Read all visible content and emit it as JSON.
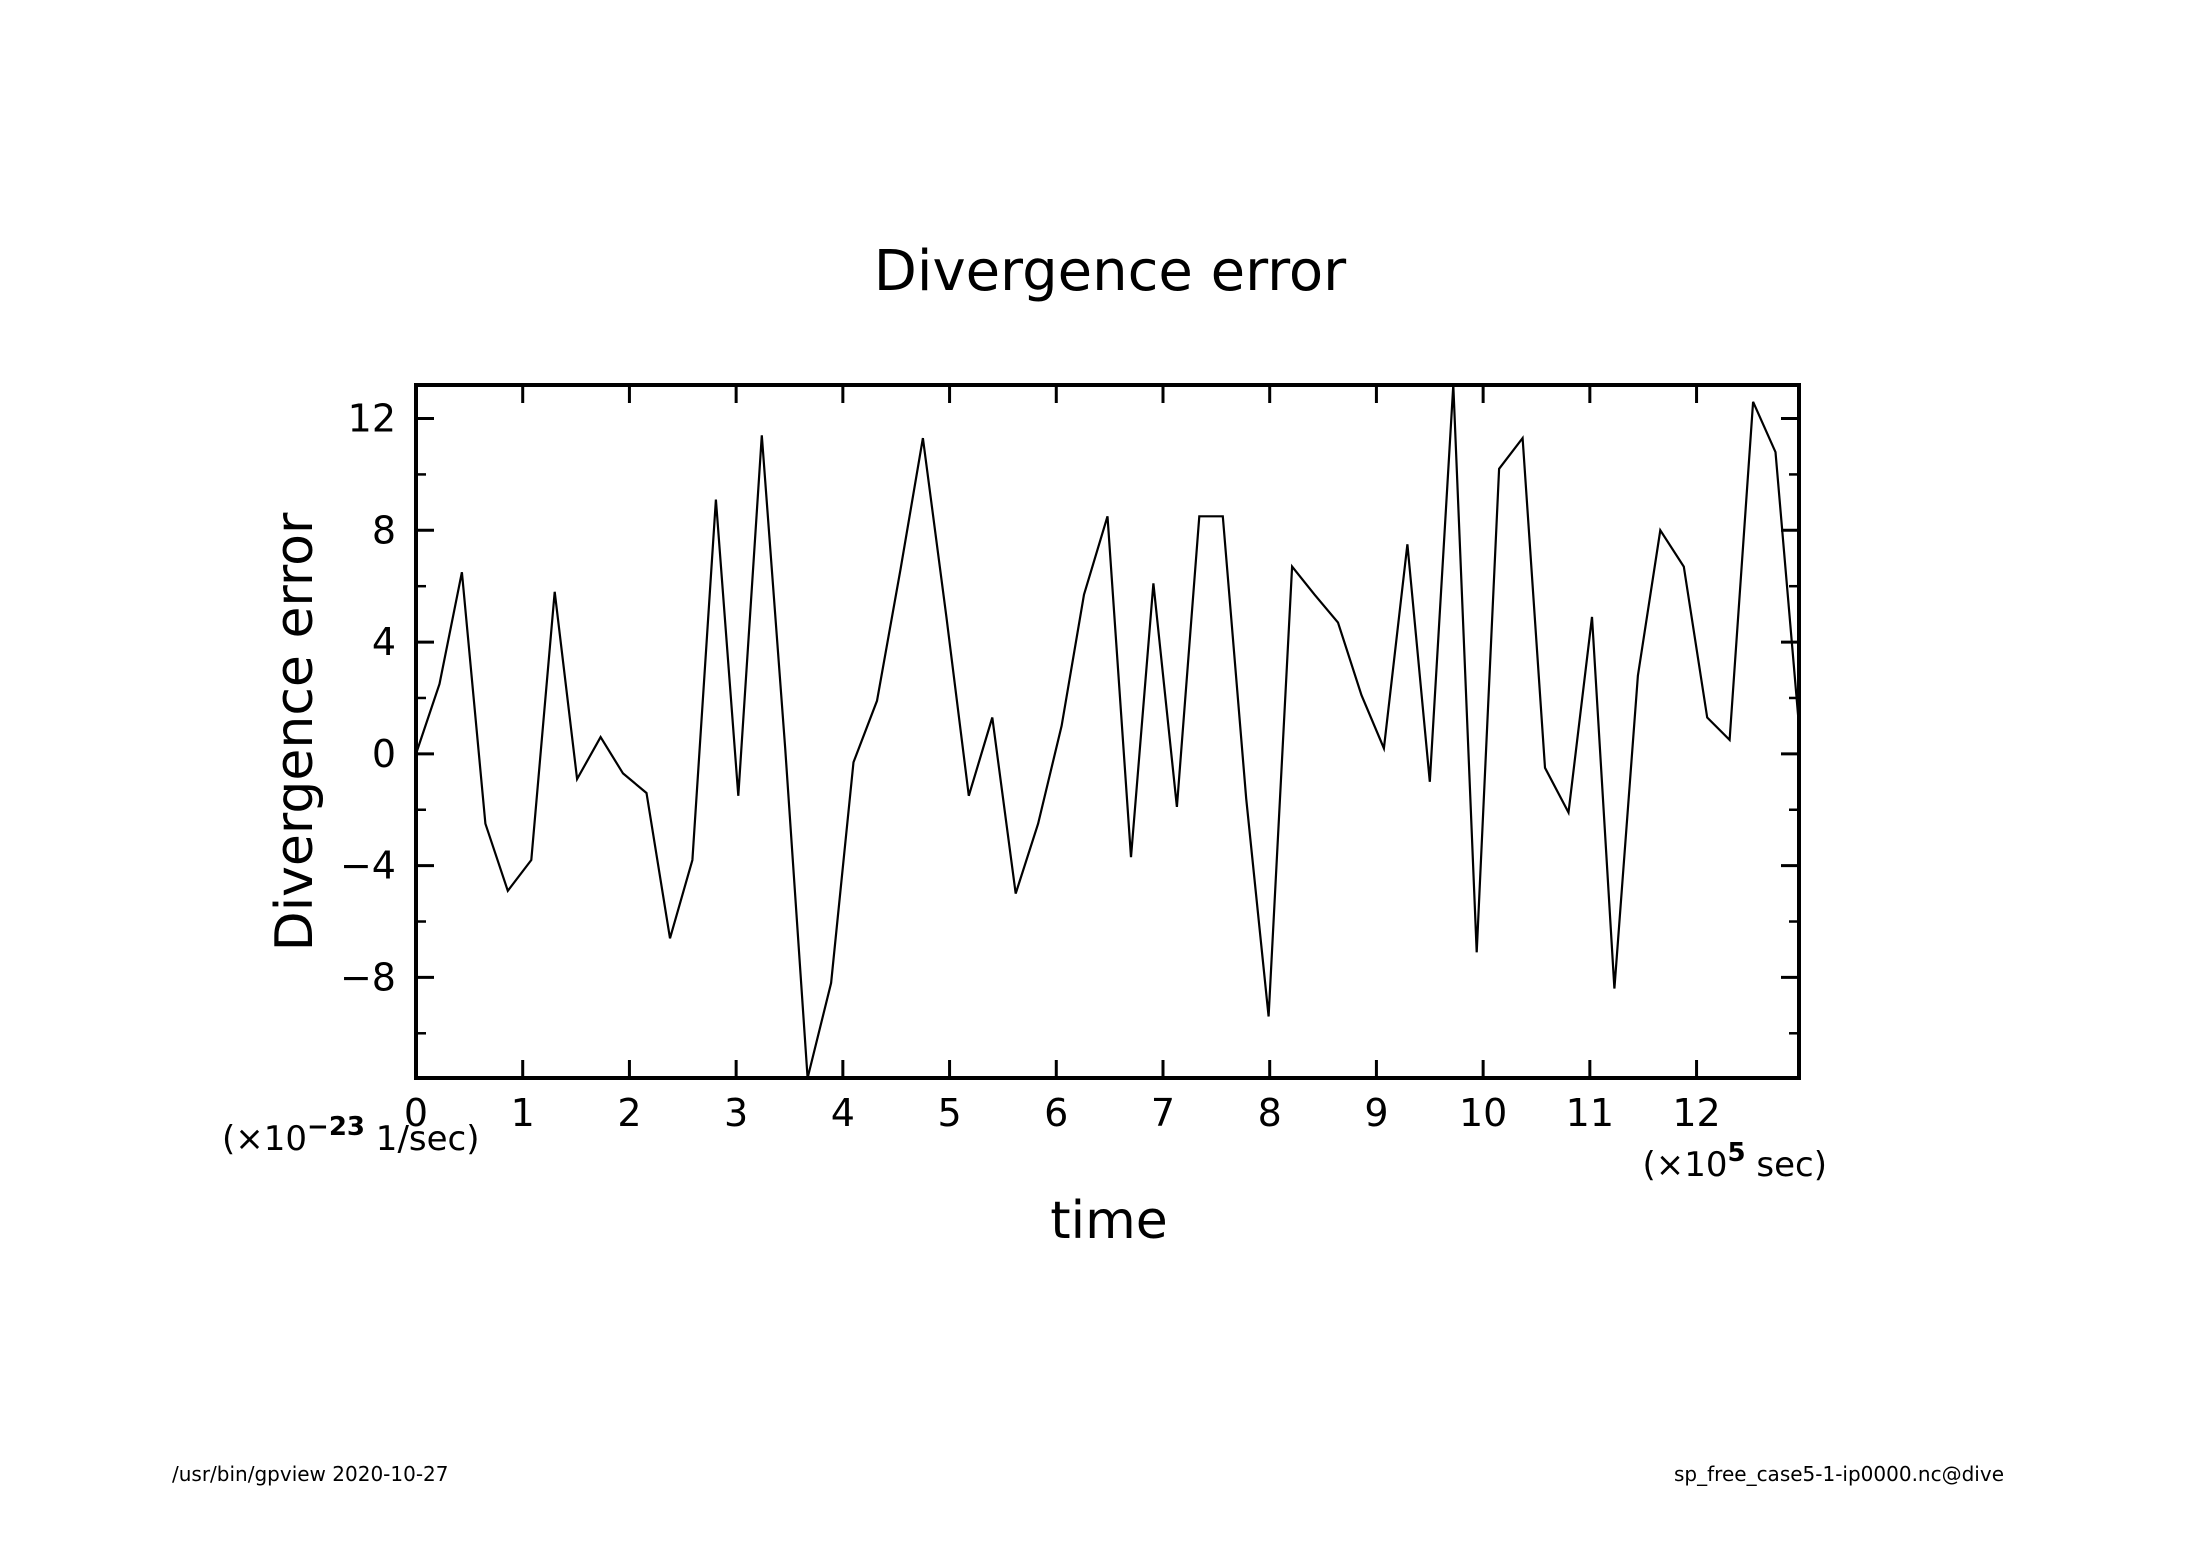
{
  "footer": {
    "left": "/usr/bin/gpview   2020-10-27",
    "right": "sp_free_case5-1-ip0000.nc@dive"
  },
  "chart_data": {
    "type": "line",
    "title": "Divergence error",
    "xlabel": "time",
    "ylabel": "Divergence error",
    "x_unit_label": "(×10^5 sec)",
    "y_unit_label": "(×10^-23 1/sec)",
    "xlim": [
      0,
      12.96
    ],
    "ylim": [
      -11.6,
      13.2
    ],
    "x_ticks": [
      0,
      1,
      2,
      3,
      4,
      5,
      6,
      7,
      8,
      9,
      10,
      11,
      12
    ],
    "y_ticks": [
      -8,
      -4,
      0,
      4,
      8,
      12
    ],
    "grid": false,
    "line_color": "#000000",
    "series": [
      {
        "x": [
          0,
          0.22,
          0.43,
          0.65,
          0.86,
          1.08,
          1.3,
          1.51,
          1.73,
          1.94,
          2.16,
          2.38,
          2.59,
          2.81,
          3.02,
          3.24,
          3.46,
          3.67,
          3.89,
          4.1,
          4.32,
          4.54,
          4.75,
          4.97,
          5.18,
          5.4,
          5.62,
          5.83,
          6.05,
          6.26,
          6.48,
          6.7,
          6.91,
          7.13,
          7.34,
          7.56,
          7.78,
          7.99,
          8.21,
          8.42,
          8.64,
          8.86,
          9.07,
          9.29,
          9.5,
          9.72,
          9.94,
          10.15,
          10.37,
          10.58,
          10.8,
          11.02,
          11.23,
          11.45,
          11.66,
          11.88,
          12.1,
          12.31,
          12.53,
          12.74,
          12.96
        ],
        "values": [
          0,
          2.5,
          6.5,
          -2.5,
          -4.9,
          -3.8,
          5.8,
          -0.9,
          0.6,
          -0.7,
          -1.4,
          -6.6,
          -3.8,
          9.1,
          -1.5,
          11.4,
          0.2,
          -11.6,
          -8.2,
          -0.3,
          1.9,
          6.6,
          11.3,
          4.9,
          -1.5,
          1.3,
          -5.0,
          -2.5,
          1.0,
          5.7,
          8.5,
          -3.7,
          6.1,
          -1.9,
          8.5,
          8.5,
          -1.6,
          -9.4,
          6.7,
          5.7,
          4.7,
          2.1,
          0.2,
          7.5,
          -1.0,
          13.2,
          -7.1,
          10.2,
          11.3,
          -0.5,
          -2.1,
          4.9,
          -8.4,
          2.8,
          8.0,
          6.7,
          1.3,
          0.5,
          12.6,
          10.8,
          1.0
        ]
      }
    ]
  }
}
